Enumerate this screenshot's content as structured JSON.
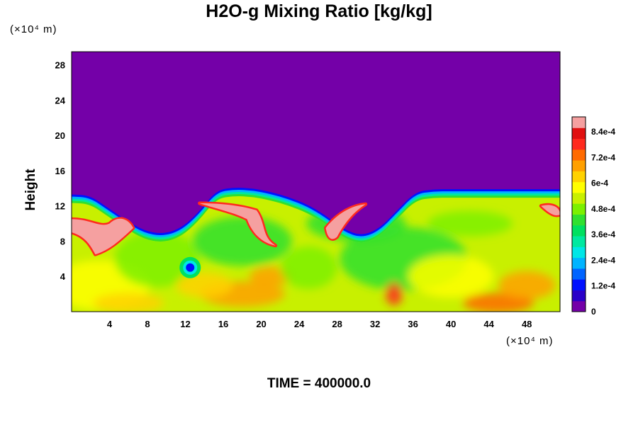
{
  "chart_data": {
    "type": "heatmap",
    "title": "H2O-g Mixing Ratio [kg/kg]",
    "ylabel": "Height",
    "x_unit": "(×10⁴ m)",
    "y_unit": "(×10⁴ m)",
    "xlim": [
      0,
      51.5
    ],
    "ylim": [
      0,
      29.5
    ],
    "x_ticks": [
      "4",
      "8",
      "12",
      "16",
      "20",
      "24",
      "28",
      "32",
      "36",
      "40",
      "44",
      "48"
    ],
    "y_ticks": [
      "4",
      "8",
      "12",
      "16",
      "20",
      "24",
      "28"
    ],
    "colorbar": {
      "min": 0,
      "max": 0.00091,
      "tick_values": [
        0,
        0.00012,
        0.00024,
        0.00036,
        0.00048,
        0.0006,
        0.00072,
        0.00084
      ],
      "tick_labels": [
        "0",
        "1.2e-4",
        "2.4e-4",
        "3.6e-4",
        "4.8e-4",
        "6e-4",
        "7.2e-4",
        "8.4e-4"
      ],
      "colors": [
        "#7400a8",
        "#2a00c8",
        "#0010ff",
        "#0064ff",
        "#00b4ff",
        "#00e6e6",
        "#00e8a0",
        "#00e060",
        "#30e030",
        "#7cf000",
        "#c8f000",
        "#ffff00",
        "#ffd200",
        "#ffa000",
        "#ff6a00",
        "#ff2a1e",
        "#e01010",
        "#f5a0a0"
      ]
    },
    "background_value": 0,
    "cloud_top_height": [
      13.3,
      13.2,
      11.8,
      10.4,
      9.2,
      8.8,
      9.4,
      11.2,
      13.8,
      14.1,
      14.0,
      13.6,
      13.0,
      12.2,
      11.0,
      9.4,
      8.6,
      9.4,
      11.5,
      13.6,
      13.9,
      13.9,
      13.9,
      13.9,
      13.9,
      13.9,
      13.9,
      13.9
    ],
    "dominant_interior_value": 0.00054,
    "features": [
      {
        "label": "saturated high-humidity pockets",
        "value": 0.0009
      },
      {
        "label": "dry vortex near x≈13",
        "value": 0.00025
      },
      {
        "label": "moist lower-layer eddies",
        "value": 0.0007
      }
    ],
    "time_label": "TIME = 400000.0",
    "grid": false
  }
}
